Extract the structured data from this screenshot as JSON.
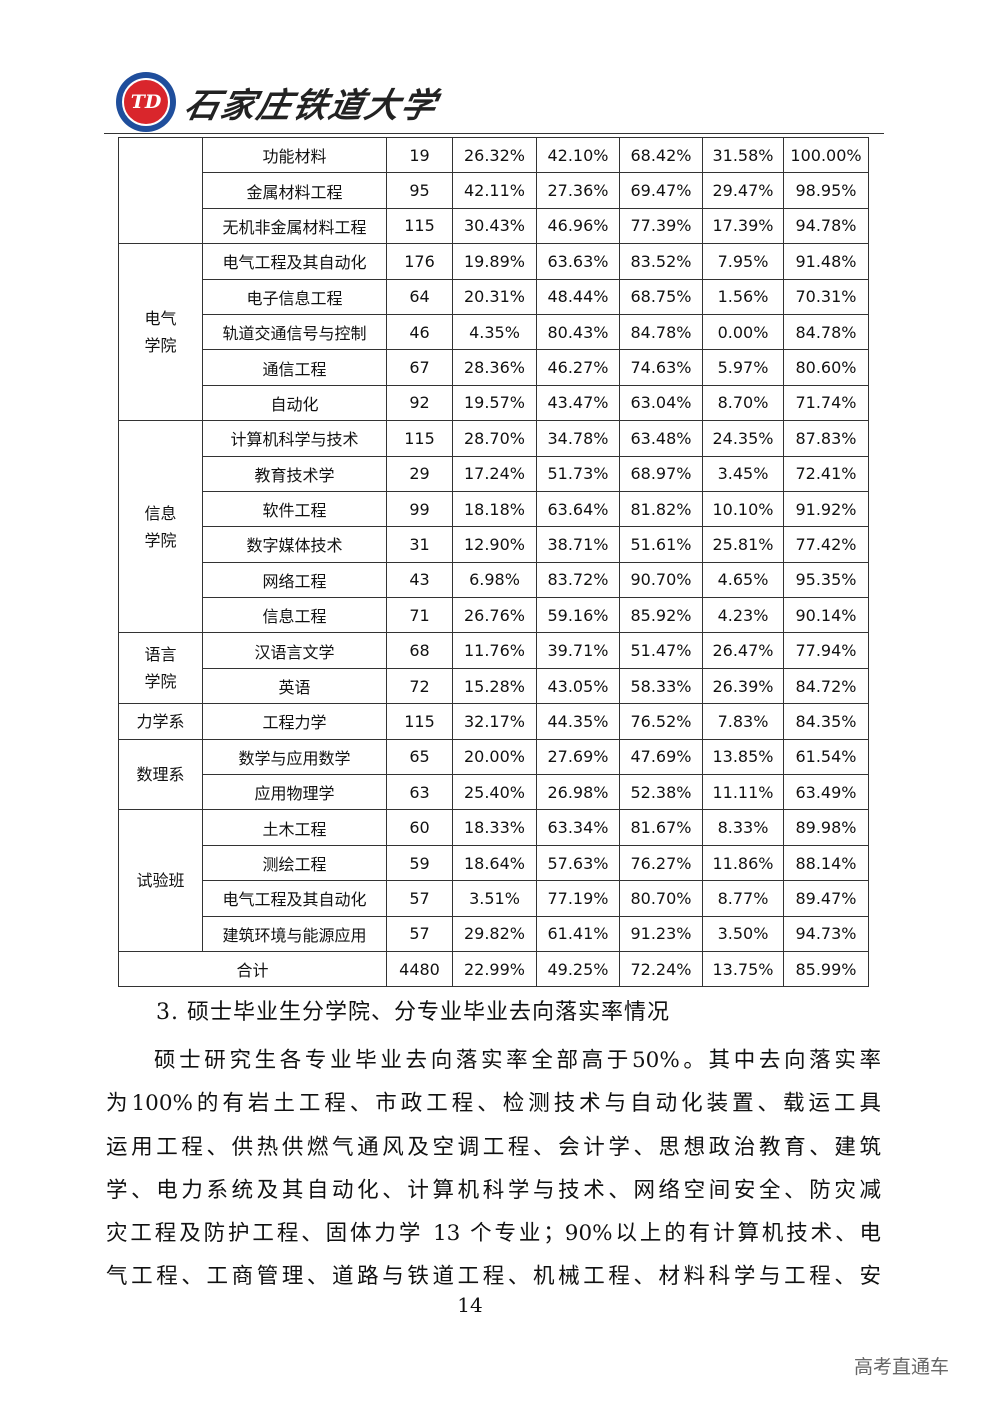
{
  "header": {
    "logo_text": "石家庄铁道大学",
    "logo_mark": "TD"
  },
  "table": {
    "groups": [
      {
        "college": "",
        "rows": [
          [
            "功能材料",
            "19",
            "26.32%",
            "42.10%",
            "68.42%",
            "31.58%",
            "100.00%"
          ],
          [
            "金属材料工程",
            "95",
            "42.11%",
            "27.36%",
            "69.47%",
            "29.47%",
            "98.95%"
          ],
          [
            "无机非金属材料工程",
            "115",
            "30.43%",
            "46.96%",
            "77.39%",
            "17.39%",
            "94.78%"
          ]
        ]
      },
      {
        "college": "电气\n学院",
        "rows": [
          [
            "电气工程及其自动化",
            "176",
            "19.89%",
            "63.63%",
            "83.52%",
            "7.95%",
            "91.48%"
          ],
          [
            "电子信息工程",
            "64",
            "20.31%",
            "48.44%",
            "68.75%",
            "1.56%",
            "70.31%"
          ],
          [
            "轨道交通信号与控制",
            "46",
            "4.35%",
            "80.43%",
            "84.78%",
            "0.00%",
            "84.78%"
          ],
          [
            "通信工程",
            "67",
            "28.36%",
            "46.27%",
            "74.63%",
            "5.97%",
            "80.60%"
          ],
          [
            "自动化",
            "92",
            "19.57%",
            "43.47%",
            "63.04%",
            "8.70%",
            "71.74%"
          ]
        ]
      },
      {
        "college": "信息\n学院",
        "rows": [
          [
            "计算机科学与技术",
            "115",
            "28.70%",
            "34.78%",
            "63.48%",
            "24.35%",
            "87.83%"
          ],
          [
            "教育技术学",
            "29",
            "17.24%",
            "51.73%",
            "68.97%",
            "3.45%",
            "72.41%"
          ],
          [
            "软件工程",
            "99",
            "18.18%",
            "63.64%",
            "81.82%",
            "10.10%",
            "91.92%"
          ],
          [
            "数字媒体技术",
            "31",
            "12.90%",
            "38.71%",
            "51.61%",
            "25.81%",
            "77.42%"
          ],
          [
            "网络工程",
            "43",
            "6.98%",
            "83.72%",
            "90.70%",
            "4.65%",
            "95.35%"
          ],
          [
            "信息工程",
            "71",
            "26.76%",
            "59.16%",
            "85.92%",
            "4.23%",
            "90.14%"
          ]
        ]
      },
      {
        "college": "语言\n学院",
        "rows": [
          [
            "汉语言文学",
            "68",
            "11.76%",
            "39.71%",
            "51.47%",
            "26.47%",
            "77.94%"
          ],
          [
            "英语",
            "72",
            "15.28%",
            "43.05%",
            "58.33%",
            "26.39%",
            "84.72%"
          ]
        ]
      },
      {
        "college": "力学系",
        "rows": [
          [
            "工程力学",
            "115",
            "32.17%",
            "44.35%",
            "76.52%",
            "7.83%",
            "84.35%"
          ]
        ]
      },
      {
        "college": "数理系",
        "rows": [
          [
            "数学与应用数学",
            "65",
            "20.00%",
            "27.69%",
            "47.69%",
            "13.85%",
            "61.54%"
          ],
          [
            "应用物理学",
            "63",
            "25.40%",
            "26.98%",
            "52.38%",
            "11.11%",
            "63.49%"
          ]
        ]
      },
      {
        "college": "试验班",
        "rows": [
          [
            "土木工程",
            "60",
            "18.33%",
            "63.34%",
            "81.67%",
            "8.33%",
            "89.98%"
          ],
          [
            "测绘工程",
            "59",
            "18.64%",
            "57.63%",
            "76.27%",
            "11.86%",
            "88.14%"
          ],
          [
            "电气工程及其自动化",
            "57",
            "3.51%",
            "77.19%",
            "80.70%",
            "8.77%",
            "89.47%"
          ],
          [
            "建筑环境与能源应用",
            "57",
            "29.82%",
            "61.41%",
            "91.23%",
            "3.50%",
            "94.73%"
          ]
        ]
      }
    ],
    "total": [
      "合计",
      "4480",
      "22.99%",
      "49.25%",
      "72.24%",
      "13.75%",
      "85.99%"
    ]
  },
  "section": {
    "heading": "3. 硕士毕业生分学院、分专业毕业去向落实率情况",
    "lines": [
      "硕士研究生各专业毕业去向落实率全部高于50%。其中去向落实率",
      "为100%的有岩土工程、市政工程、检测技术与自动化装置、载运工具",
      "运用工程、供热供燃气通风及空调工程、会计学、思想政治教育、建筑",
      "学、电力系统及其自动化、计算机科学与技术、网络空间安全、防灾减",
      "灾工程及防护工程、固体力学 13 个专业；90%以上的有计算机技术、电",
      "气工程、工商管理、道路与铁道工程、机械工程、材料科学与工程、安"
    ]
  },
  "page_number": "14",
  "watermark": "高考直通车"
}
